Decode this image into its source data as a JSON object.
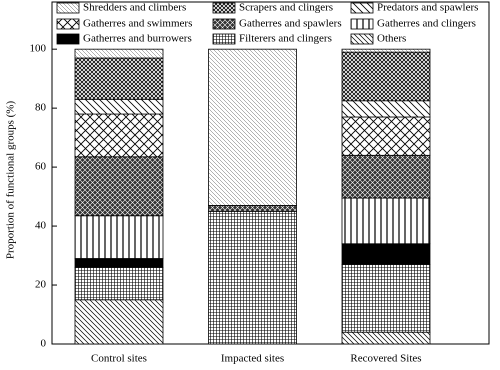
{
  "chart_data": {
    "type": "stacked-bar",
    "ylabel": "Proportion of functional groups (%)",
    "categories": [
      "Control sites",
      "Impacted sites",
      "Recovered Sites"
    ],
    "ylim": [
      0,
      116
    ],
    "yticks": [
      0,
      20,
      40,
      60,
      80,
      100
    ],
    "series": [
      {
        "name": "Shredders and climbers",
        "color": "#000000",
        "pattern": "fine-diagonal",
        "values": [
          3,
          53,
          1
        ]
      },
      {
        "name": "Scrapers and clingers",
        "color": "#000000",
        "pattern": "dense-cross",
        "values": [
          14,
          0,
          16.5
        ]
      },
      {
        "name": "Predators and spawlers",
        "color": "#000000",
        "pattern": "wide-diagonal",
        "values": [
          5,
          0,
          5.5
        ]
      },
      {
        "name": "Gatherres and swimmers",
        "color": "#000000",
        "pattern": "big-cross",
        "values": [
          14.5,
          0,
          13
        ]
      },
      {
        "name": "Gatherres and spawlers",
        "color": "#000000",
        "pattern": "dark-cross",
        "values": [
          20,
          2,
          14.5
        ]
      },
      {
        "name": "Gatherres and clingers",
        "color": "#000000",
        "pattern": "vertical",
        "values": [
          14.5,
          0,
          15.5
        ]
      },
      {
        "name": "Gatherres and burrowers",
        "color": "#000000",
        "pattern": "solid",
        "values": [
          3,
          0,
          7
        ]
      },
      {
        "name": "Filterers and clingers",
        "color": "#000000",
        "pattern": "grid",
        "values": [
          11,
          45,
          23
        ]
      },
      {
        "name": "Others",
        "color": "#000000",
        "pattern": "diagonal",
        "values": [
          15,
          0,
          4
        ]
      }
    ]
  }
}
